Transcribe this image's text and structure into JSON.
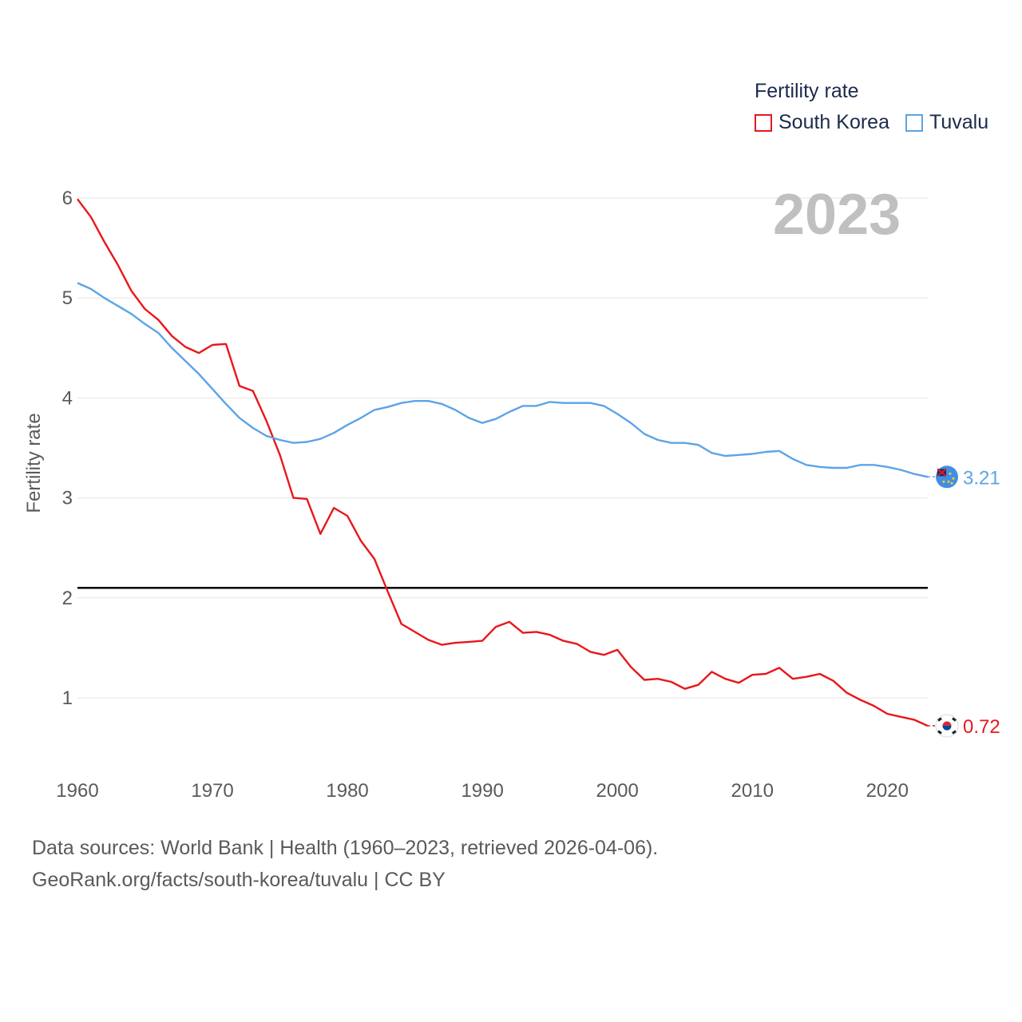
{
  "legend": {
    "title": "Fertility rate",
    "items": [
      {
        "label": "South Korea",
        "color": "#e8171c"
      },
      {
        "label": "Tuvalu",
        "color": "#5ca4e6"
      }
    ]
  },
  "year_badge": "2023",
  "footer": {
    "line1": "Data sources: World Bank | Health (1960–2023, retrieved 2026-04-06).",
    "line2": "GeoRank.org/facts/south-korea/tuvalu | CC BY"
  },
  "chart_data": {
    "type": "line",
    "ylabel": "Fertility rate",
    "xlabel": "",
    "xlim": [
      1960,
      2023
    ],
    "ylim": [
      0.5,
      6.2
    ],
    "x_ticks": [
      1960,
      1970,
      1980,
      1990,
      2000,
      2010,
      2020
    ],
    "y_ticks": [
      1,
      2,
      3,
      4,
      5,
      6
    ],
    "reference_line": 2.1,
    "x": [
      1960,
      1961,
      1962,
      1963,
      1964,
      1965,
      1966,
      1967,
      1968,
      1969,
      1970,
      1971,
      1972,
      1973,
      1974,
      1975,
      1976,
      1977,
      1978,
      1979,
      1980,
      1981,
      1982,
      1983,
      1984,
      1985,
      1986,
      1987,
      1988,
      1989,
      1990,
      1991,
      1992,
      1993,
      1994,
      1995,
      1996,
      1997,
      1998,
      1999,
      2000,
      2001,
      2002,
      2003,
      2004,
      2005,
      2006,
      2007,
      2008,
      2009,
      2010,
      2011,
      2012,
      2013,
      2014,
      2015,
      2016,
      2017,
      2018,
      2019,
      2020,
      2021,
      2022,
      2023
    ],
    "series": [
      {
        "name": "South Korea",
        "color": "#e8171c",
        "end_label": "0.72",
        "values": [
          5.99,
          5.81,
          5.56,
          5.33,
          5.07,
          4.89,
          4.78,
          4.62,
          4.51,
          4.45,
          4.53,
          4.54,
          4.12,
          4.07,
          3.77,
          3.43,
          3.0,
          2.99,
          2.64,
          2.9,
          2.82,
          2.57,
          2.39,
          2.06,
          1.74,
          1.66,
          1.58,
          1.53,
          1.55,
          1.56,
          1.57,
          1.71,
          1.76,
          1.65,
          1.66,
          1.63,
          1.57,
          1.54,
          1.46,
          1.43,
          1.48,
          1.31,
          1.18,
          1.19,
          1.16,
          1.09,
          1.13,
          1.26,
          1.19,
          1.15,
          1.23,
          1.24,
          1.3,
          1.19,
          1.21,
          1.24,
          1.17,
          1.05,
          0.98,
          0.92,
          0.84,
          0.81,
          0.78,
          0.72
        ]
      },
      {
        "name": "Tuvalu",
        "color": "#5ca4e6",
        "end_label": "3.21",
        "values": [
          5.15,
          5.09,
          5.0,
          4.92,
          4.84,
          4.74,
          4.65,
          4.5,
          4.37,
          4.24,
          4.09,
          3.94,
          3.8,
          3.7,
          3.62,
          3.58,
          3.55,
          3.56,
          3.59,
          3.65,
          3.73,
          3.8,
          3.88,
          3.91,
          3.95,
          3.97,
          3.97,
          3.94,
          3.88,
          3.8,
          3.75,
          3.79,
          3.86,
          3.92,
          3.92,
          3.96,
          3.95,
          3.95,
          3.95,
          3.92,
          3.84,
          3.75,
          3.64,
          3.58,
          3.55,
          3.55,
          3.53,
          3.45,
          3.42,
          3.43,
          3.44,
          3.46,
          3.47,
          3.39,
          3.33,
          3.31,
          3.3,
          3.3,
          3.33,
          3.33,
          3.31,
          3.28,
          3.24,
          3.21
        ]
      }
    ]
  }
}
